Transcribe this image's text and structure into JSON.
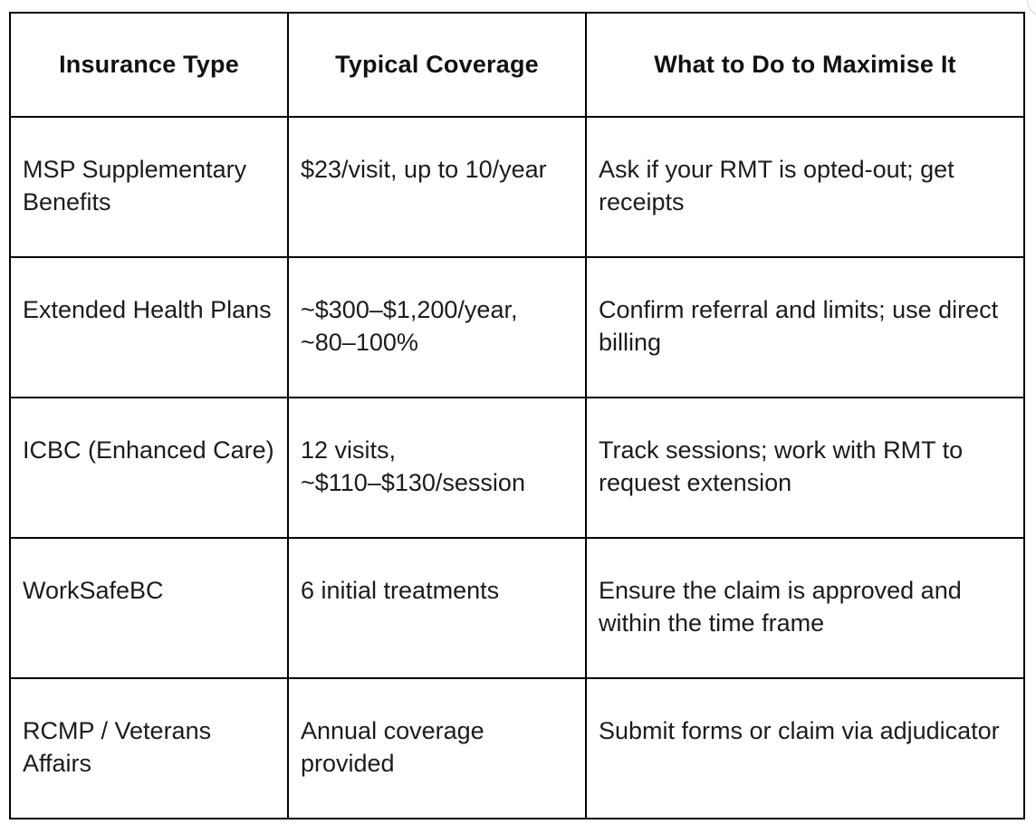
{
  "page": {
    "background_color": "#ffffff",
    "table_border_color": "#000000",
    "text_color": "#1c1c1c",
    "corner_decoration_color": "#e7e7e7"
  },
  "table": {
    "headers": [
      "Insurance Type",
      "Typical Coverage",
      "What to Do to Maximise It"
    ],
    "rows": [
      {
        "cells": [
          "MSP Supplementary\nBenefits",
          "$23/visit, up to 10/year",
          "Ask if your RMT is opted-out; get\nreceipts"
        ]
      },
      {
        "cells": [
          "Extended Health Plans",
          "~$300–$1,200/year,\n~80–100%",
          "Confirm referral and limits; use direct\nbilling"
        ]
      },
      {
        "cells": [
          "ICBC (Enhanced Care)",
          "12 visits,\n~$110–$130/session",
          "Track sessions; work with RMT to\nrequest extension"
        ]
      },
      {
        "cells": [
          "WorkSafeBC",
          "6 initial treatments",
          "Ensure the claim is approved and\nwithin the time frame"
        ]
      },
      {
        "cells": [
          "RCMP / Veterans Affairs",
          "Annual coverage\nprovided",
          "Submit forms or claim via adjudicator"
        ]
      }
    ]
  }
}
